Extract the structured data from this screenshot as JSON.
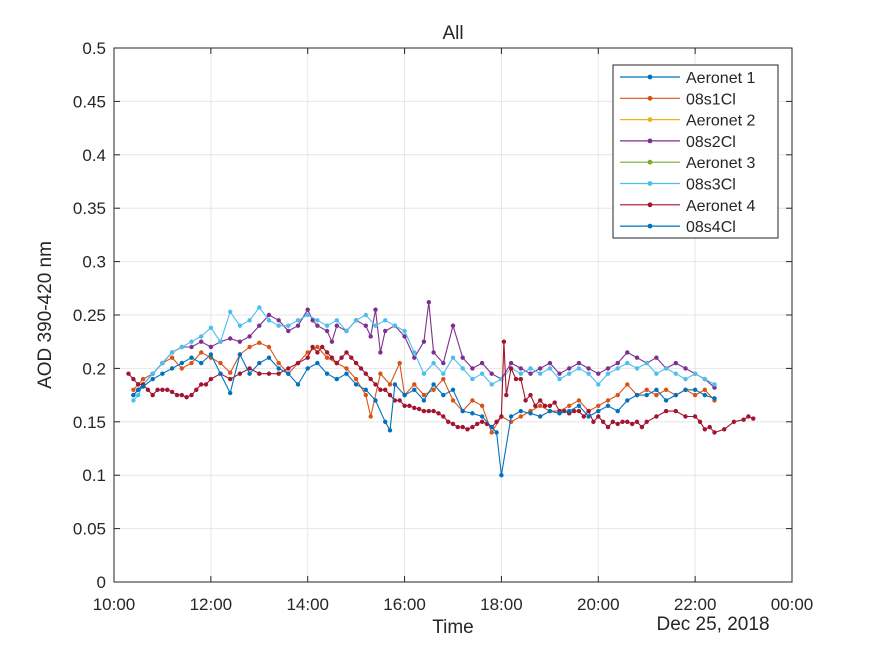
{
  "chart_data": {
    "type": "line",
    "title": "All",
    "xlabel": "Time",
    "ylabel": "AOD 390-420 nm",
    "date_label": "Dec 25, 2018",
    "xlim": [
      10,
      24
    ],
    "ylim": [
      0,
      0.5
    ],
    "x_ticks": [
      10,
      12,
      14,
      16,
      18,
      20,
      22,
      24
    ],
    "x_tick_labels": [
      "10:00",
      "12:00",
      "14:00",
      "16:00",
      "18:00",
      "20:00",
      "22:00",
      "00:00"
    ],
    "y_ticks": [
      0,
      0.05,
      0.1,
      0.15,
      0.2,
      0.25,
      0.3,
      0.35,
      0.4,
      0.45,
      0.5
    ],
    "y_tick_labels": [
      "0",
      "0.05",
      "0.1",
      "0.15",
      "0.2",
      "0.25",
      "0.3",
      "0.35",
      "0.4",
      "0.45",
      "0.5"
    ],
    "grid": true,
    "legend_position": "top-right",
    "series": [
      {
        "name": "Aeronet 1",
        "color": "#0072BD",
        "x": [],
        "y": []
      },
      {
        "name": "08s1Cl",
        "color": "#D95319",
        "x": [
          10.4,
          10.5,
          10.6,
          10.8,
          11.0,
          11.2,
          11.4,
          11.6,
          11.8,
          12.0,
          12.2,
          12.4,
          12.6,
          12.8,
          13.0,
          13.2,
          13.4,
          13.6,
          13.8,
          14.0,
          14.2,
          14.4,
          14.6,
          14.8,
          15.0,
          15.2,
          15.3,
          15.5,
          15.7,
          15.9,
          16.0,
          16.2,
          16.4,
          16.6,
          16.8,
          17.0,
          17.2,
          17.4,
          17.6,
          17.8,
          18.0,
          18.2,
          18.4,
          18.6,
          18.8,
          19.0,
          19.2,
          19.4,
          19.6,
          19.8,
          20.0,
          20.2,
          20.4,
          20.6,
          20.8,
          21.0,
          21.2,
          21.4,
          21.6,
          21.8,
          22.0,
          22.2,
          22.4
        ],
        "y": [
          0.18,
          0.185,
          0.19,
          0.195,
          0.205,
          0.21,
          0.2,
          0.205,
          0.215,
          0.21,
          0.205,
          0.196,
          0.213,
          0.22,
          0.224,
          0.22,
          0.205,
          0.195,
          0.205,
          0.215,
          0.22,
          0.21,
          0.205,
          0.2,
          0.19,
          0.175,
          0.155,
          0.195,
          0.185,
          0.205,
          0.175,
          0.185,
          0.175,
          0.18,
          0.19,
          0.17,
          0.16,
          0.17,
          0.165,
          0.14,
          0.155,
          0.15,
          0.155,
          0.16,
          0.165,
          0.16,
          0.16,
          0.165,
          0.17,
          0.16,
          0.165,
          0.17,
          0.175,
          0.185,
          0.175,
          0.18,
          0.175,
          0.18,
          0.175,
          0.18,
          0.175,
          0.18,
          0.17
        ]
      },
      {
        "name": "Aeronet 2",
        "color": "#EDB120",
        "x": [],
        "y": []
      },
      {
        "name": "08s2Cl",
        "color": "#7E2F8E",
        "x": [
          10.4,
          10.5,
          10.6,
          10.8,
          11.0,
          11.2,
          11.4,
          11.6,
          11.8,
          12.0,
          12.2,
          12.4,
          12.6,
          12.8,
          13.0,
          13.2,
          13.4,
          13.6,
          13.8,
          14.0,
          14.1,
          14.2,
          14.4,
          14.5,
          14.6,
          14.8,
          15.0,
          15.2,
          15.3,
          15.4,
          15.5,
          15.6,
          15.8,
          16.0,
          16.2,
          16.4,
          16.5,
          16.6,
          16.8,
          17.0,
          17.2,
          17.4,
          17.6,
          17.8,
          18.0,
          18.2,
          18.4,
          18.6,
          18.8,
          19.0,
          19.2,
          19.4,
          19.6,
          19.8,
          20.0,
          20.2,
          20.4,
          20.6,
          20.8,
          21.0,
          21.2,
          21.4,
          21.6,
          21.8,
          22.0,
          22.2,
          22.4
        ],
        "y": [
          0.175,
          0.18,
          0.185,
          0.195,
          0.205,
          0.215,
          0.22,
          0.22,
          0.225,
          0.22,
          0.225,
          0.228,
          0.225,
          0.23,
          0.24,
          0.25,
          0.245,
          0.235,
          0.24,
          0.255,
          0.245,
          0.24,
          0.235,
          0.225,
          0.24,
          0.235,
          0.245,
          0.24,
          0.23,
          0.255,
          0.215,
          0.235,
          0.24,
          0.23,
          0.21,
          0.225,
          0.262,
          0.215,
          0.205,
          0.24,
          0.21,
          0.2,
          0.205,
          0.195,
          0.19,
          0.205,
          0.2,
          0.195,
          0.2,
          0.205,
          0.195,
          0.2,
          0.205,
          0.2,
          0.195,
          0.2,
          0.205,
          0.215,
          0.21,
          0.205,
          0.21,
          0.2,
          0.205,
          0.2,
          0.195,
          0.19,
          0.182
        ]
      },
      {
        "name": "Aeronet 3",
        "color": "#77AC30",
        "x": [],
        "y": []
      },
      {
        "name": "08s3Cl",
        "color": "#4DBEEE",
        "x": [
          10.4,
          10.5,
          10.6,
          10.8,
          11.0,
          11.2,
          11.4,
          11.6,
          11.8,
          12.0,
          12.2,
          12.4,
          12.6,
          12.8,
          13.0,
          13.2,
          13.4,
          13.6,
          13.8,
          14.0,
          14.2,
          14.4,
          14.6,
          14.8,
          15.0,
          15.2,
          15.4,
          15.6,
          15.8,
          16.0,
          16.2,
          16.4,
          16.6,
          16.8,
          17.0,
          17.2,
          17.4,
          17.6,
          17.8,
          18.0,
          18.2,
          18.4,
          18.6,
          18.8,
          19.0,
          19.2,
          19.4,
          19.6,
          19.8,
          20.0,
          20.2,
          20.4,
          20.6,
          20.8,
          21.0,
          21.2,
          21.4,
          21.6,
          21.8,
          22.0,
          22.2,
          22.4
        ],
        "y": [
          0.17,
          0.175,
          0.185,
          0.195,
          0.205,
          0.215,
          0.22,
          0.225,
          0.23,
          0.238,
          0.225,
          0.253,
          0.24,
          0.245,
          0.257,
          0.245,
          0.24,
          0.24,
          0.245,
          0.25,
          0.245,
          0.24,
          0.245,
          0.235,
          0.245,
          0.25,
          0.24,
          0.245,
          0.24,
          0.235,
          0.215,
          0.195,
          0.205,
          0.195,
          0.21,
          0.2,
          0.19,
          0.195,
          0.185,
          0.19,
          0.2,
          0.195,
          0.2,
          0.195,
          0.2,
          0.19,
          0.195,
          0.2,
          0.195,
          0.185,
          0.195,
          0.2,
          0.205,
          0.2,
          0.205,
          0.195,
          0.2,
          0.195,
          0.19,
          0.195,
          0.19,
          0.185
        ]
      },
      {
        "name": "Aeronet 4",
        "color": "#A2142F",
        "x": [
          10.3,
          10.4,
          10.5,
          10.6,
          10.7,
          10.8,
          10.9,
          11.0,
          11.1,
          11.2,
          11.3,
          11.4,
          11.5,
          11.6,
          11.7,
          11.8,
          11.9,
          12.0,
          12.2,
          12.4,
          12.6,
          12.8,
          13.0,
          13.2,
          13.4,
          13.6,
          13.8,
          14.0,
          14.1,
          14.2,
          14.3,
          14.4,
          14.5,
          14.6,
          14.7,
          14.8,
          14.9,
          15.0,
          15.1,
          15.2,
          15.3,
          15.4,
          15.5,
          15.6,
          15.7,
          15.8,
          15.9,
          16.0,
          16.1,
          16.2,
          16.3,
          16.4,
          16.5,
          16.6,
          16.7,
          16.8,
          16.9,
          17.0,
          17.1,
          17.2,
          17.3,
          17.4,
          17.5,
          17.6,
          17.7,
          17.8,
          17.9,
          18.0,
          18.05,
          18.1,
          18.2,
          18.3,
          18.4,
          18.5,
          18.6,
          18.7,
          18.8,
          18.9,
          19.0,
          19.1,
          19.2,
          19.3,
          19.4,
          19.5,
          19.6,
          19.7,
          19.8,
          19.9,
          20.0,
          20.1,
          20.2,
          20.3,
          20.4,
          20.5,
          20.6,
          20.7,
          20.8,
          20.9,
          21.0,
          21.2,
          21.4,
          21.6,
          21.8,
          22.0,
          22.1,
          22.2,
          22.3,
          22.4,
          22.6,
          22.8,
          23.0,
          23.1,
          23.2
        ],
        "y": [
          0.195,
          0.19,
          0.185,
          0.185,
          0.18,
          0.175,
          0.18,
          0.18,
          0.18,
          0.178,
          0.175,
          0.175,
          0.173,
          0.175,
          0.18,
          0.185,
          0.185,
          0.19,
          0.195,
          0.19,
          0.195,
          0.2,
          0.195,
          0.195,
          0.195,
          0.2,
          0.205,
          0.21,
          0.22,
          0.215,
          0.22,
          0.215,
          0.21,
          0.205,
          0.21,
          0.215,
          0.21,
          0.205,
          0.2,
          0.195,
          0.19,
          0.185,
          0.18,
          0.18,
          0.175,
          0.17,
          0.17,
          0.165,
          0.165,
          0.163,
          0.162,
          0.16,
          0.16,
          0.16,
          0.158,
          0.155,
          0.15,
          0.148,
          0.145,
          0.145,
          0.143,
          0.145,
          0.148,
          0.15,
          0.148,
          0.145,
          0.15,
          0.155,
          0.225,
          0.175,
          0.2,
          0.19,
          0.19,
          0.17,
          0.175,
          0.165,
          0.17,
          0.165,
          0.165,
          0.168,
          0.16,
          0.16,
          0.158,
          0.16,
          0.16,
          0.155,
          0.16,
          0.15,
          0.155,
          0.15,
          0.145,
          0.15,
          0.148,
          0.15,
          0.15,
          0.148,
          0.15,
          0.145,
          0.15,
          0.155,
          0.16,
          0.16,
          0.155,
          0.155,
          0.15,
          0.143,
          0.145,
          0.14,
          0.143,
          0.15,
          0.152,
          0.155,
          0.153
        ]
      },
      {
        "name": "08s4Cl",
        "color": "#0072BD",
        "x": [
          10.4,
          10.5,
          10.6,
          10.8,
          11.0,
          11.2,
          11.4,
          11.6,
          11.8,
          12.0,
          12.2,
          12.4,
          12.6,
          12.8,
          13.0,
          13.2,
          13.4,
          13.6,
          13.8,
          14.0,
          14.2,
          14.4,
          14.6,
          14.8,
          15.0,
          15.2,
          15.4,
          15.6,
          15.7,
          15.8,
          16.0,
          16.2,
          16.4,
          16.6,
          16.8,
          17.0,
          17.2,
          17.4,
          17.6,
          17.8,
          17.9,
          18.0,
          18.2,
          18.4,
          18.6,
          18.8,
          19.0,
          19.2,
          19.4,
          19.6,
          19.8,
          20.0,
          20.2,
          20.4,
          20.6,
          20.8,
          21.0,
          21.2,
          21.4,
          21.6,
          21.8,
          22.0,
          22.2,
          22.4
        ],
        "y": [
          0.175,
          0.18,
          0.183,
          0.19,
          0.195,
          0.2,
          0.205,
          0.21,
          0.205,
          0.213,
          0.195,
          0.177,
          0.213,
          0.195,
          0.205,
          0.21,
          0.2,
          0.195,
          0.185,
          0.2,
          0.205,
          0.195,
          0.19,
          0.195,
          0.185,
          0.18,
          0.17,
          0.15,
          0.142,
          0.185,
          0.175,
          0.18,
          0.17,
          0.185,
          0.175,
          0.18,
          0.16,
          0.158,
          0.155,
          0.145,
          0.14,
          0.1,
          0.155,
          0.16,
          0.158,
          0.155,
          0.16,
          0.158,
          0.16,
          0.165,
          0.155,
          0.16,
          0.165,
          0.16,
          0.17,
          0.175,
          0.175,
          0.18,
          0.17,
          0.175,
          0.18,
          0.18,
          0.175,
          0.172
        ]
      }
    ]
  }
}
